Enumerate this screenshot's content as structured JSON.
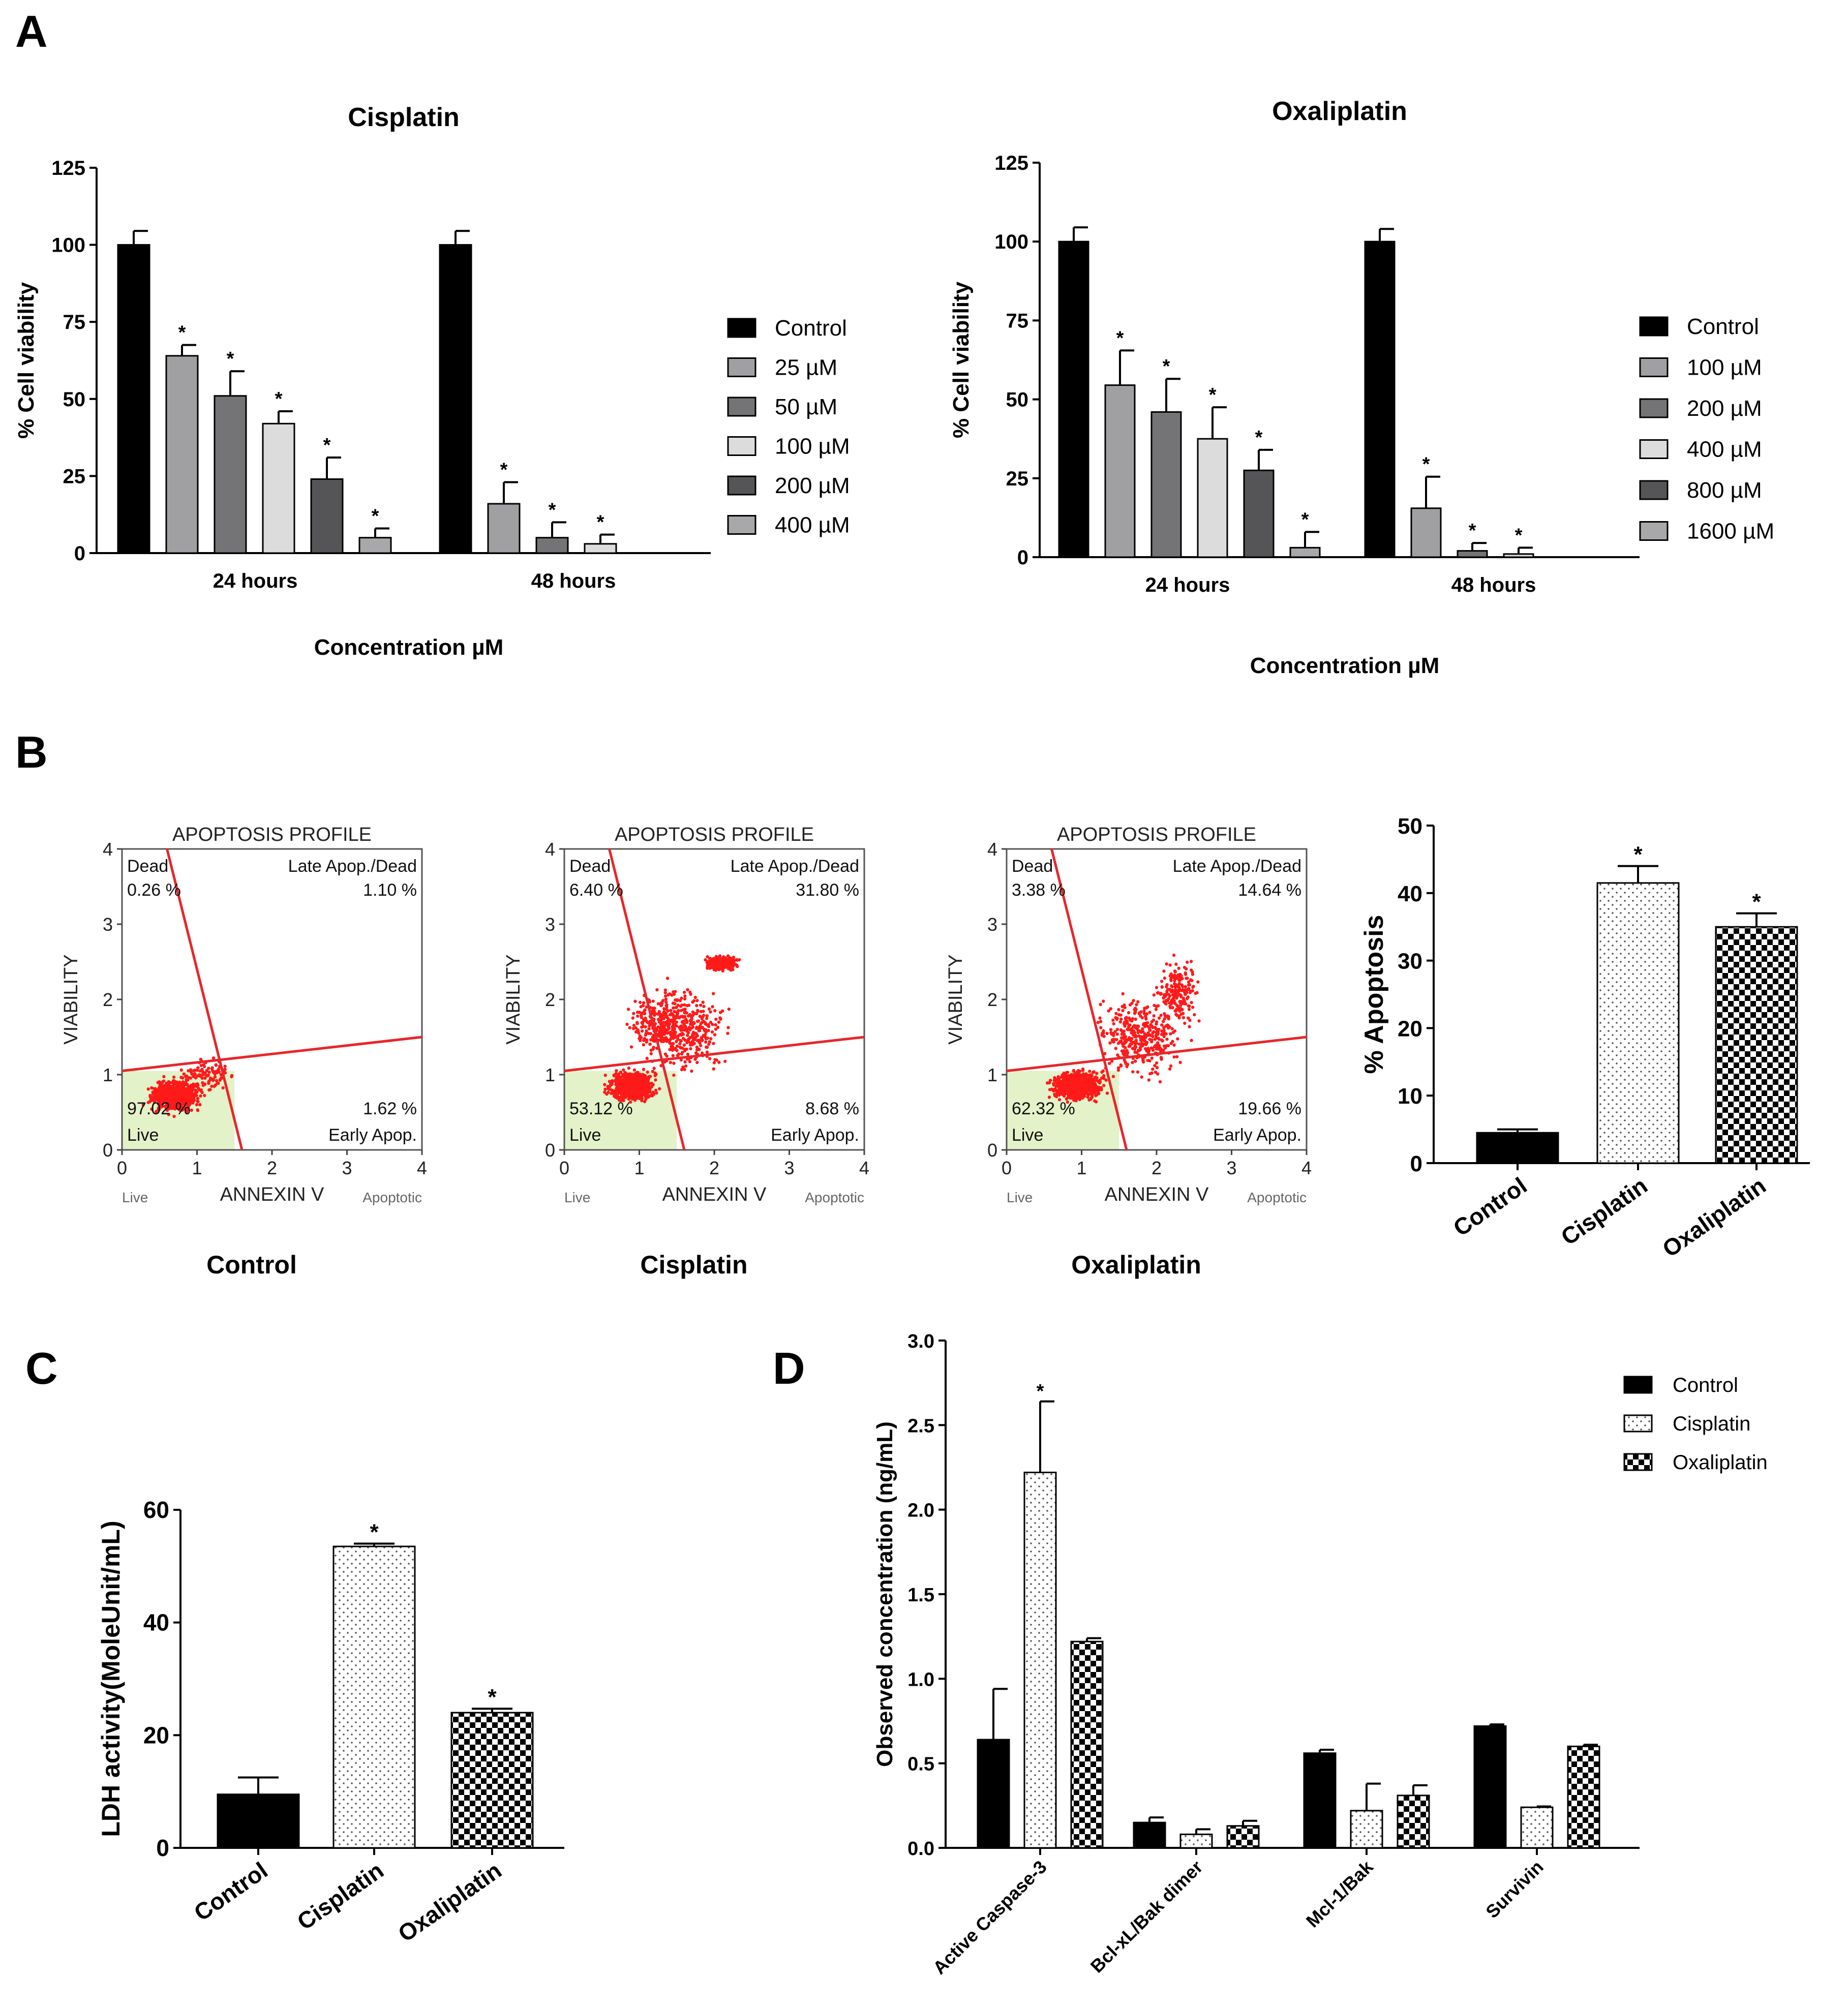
{
  "panel_labels": {
    "a": "A",
    "b": "B",
    "c": "C",
    "d": "D"
  },
  "chart_data": [
    {
      "id": "cis",
      "type": "bar",
      "title": "Cisplatin",
      "xlabel": "Concentration µM",
      "ylabel": "% Cell viability",
      "ylim": [
        0,
        125
      ],
      "yticks": [
        "0",
        "25",
        "50",
        "75",
        "100",
        "125"
      ],
      "categories": [
        "24 hours",
        "48 hours"
      ],
      "series": [
        {
          "name": "Control",
          "values": [
            100,
            100
          ],
          "errors": [
            4.5,
            4.5
          ],
          "sig": [
            false,
            false
          ]
        },
        {
          "name": "25 µM",
          "values": [
            64,
            16
          ],
          "errors": [
            3.5,
            7
          ],
          "sig": [
            true,
            true
          ]
        },
        {
          "name": "50 µM",
          "values": [
            51,
            5
          ],
          "errors": [
            8,
            5
          ],
          "sig": [
            true,
            true
          ]
        },
        {
          "name": "100 µM",
          "values": [
            42,
            3
          ],
          "errors": [
            4,
            3
          ],
          "sig": [
            true,
            true
          ]
        },
        {
          "name": "200 µM",
          "values": [
            24,
            null
          ],
          "errors": [
            7,
            null
          ],
          "sig": [
            true,
            false
          ]
        },
        {
          "name": "400 µM",
          "values": [
            5,
            null
          ],
          "errors": [
            3,
            null
          ],
          "sig": [
            true,
            false
          ]
        }
      ]
    },
    {
      "id": "oxa",
      "type": "bar",
      "title": "Oxaliplatin",
      "xlabel": "Concentration µM",
      "ylabel": "% Cell viability",
      "ylim": [
        0,
        125
      ],
      "yticks": [
        "0",
        "25",
        "50",
        "75",
        "100",
        "125"
      ],
      "categories": [
        "24 hours",
        "48 hours"
      ],
      "series": [
        {
          "name": "Control",
          "values": [
            100,
            100
          ],
          "errors": [
            4.5,
            4
          ],
          "sig": [
            false,
            false
          ]
        },
        {
          "name": "100 µM",
          "values": [
            54.5,
            15.5
          ],
          "errors": [
            11,
            10
          ],
          "sig": [
            true,
            true
          ]
        },
        {
          "name": "200 µM",
          "values": [
            46,
            2
          ],
          "errors": [
            10.5,
            2.5
          ],
          "sig": [
            true,
            true
          ]
        },
        {
          "name": "400 µM",
          "values": [
            37.5,
            1
          ],
          "errors": [
            10,
            2
          ],
          "sig": [
            true,
            true
          ]
        },
        {
          "name": "800 µM",
          "values": [
            27.5,
            null
          ],
          "errors": [
            6.5,
            null
          ],
          "sig": [
            true,
            false
          ]
        },
        {
          "name": "1600 µM",
          "values": [
            3,
            null
          ],
          "errors": [
            5,
            null
          ],
          "sig": [
            true,
            false
          ]
        }
      ]
    },
    {
      "id": "flow",
      "type": "scatter",
      "subtype": "annexin-v-flow-cytometry",
      "panel_title": "APOPTOSIS PROFILE",
      "xlabel": "ANNEXIN V",
      "ylabel": "VIABILITY",
      "xlim": [
        0,
        4
      ],
      "ylim": [
        0,
        4
      ],
      "ticks": [
        "0",
        "1",
        "2",
        "3",
        "4"
      ],
      "x_left_caption": "Live",
      "x_right_caption": "Apoptotic",
      "quadrant_names": {
        "dead": "Dead",
        "late": "Late Apop./Dead",
        "live": "Live",
        "early": "Early Apop."
      },
      "plots": [
        {
          "name": "Control",
          "dead": "0.26 %",
          "late": "1.10 %",
          "live": "97.02 %",
          "early": "1.62 %"
        },
        {
          "name": "Cisplatin",
          "dead": "6.40 %",
          "late": "31.80 %",
          "live": "53.12 %",
          "early": "8.68 %"
        },
        {
          "name": "Oxaliplatin",
          "dead": "3.38 %",
          "late": "14.64 %",
          "live": "62.32 %",
          "early": "19.66 %"
        }
      ]
    },
    {
      "id": "apop",
      "type": "bar",
      "ylabel": "% Apoptosis",
      "ylim": [
        0,
        50
      ],
      "yticks": [
        "0",
        "10",
        "20",
        "30",
        "40",
        "50"
      ],
      "categories": [
        "Control",
        "Cisplatin",
        "Oxaliplatin"
      ],
      "values": [
        4.5,
        41.5,
        35
      ],
      "errors": [
        0.5,
        2.5,
        2
      ],
      "sig": [
        false,
        true,
        true
      ]
    },
    {
      "id": "ldh",
      "type": "bar",
      "ylabel": "LDH activity(MoleUnit/mL)",
      "ylim": [
        0,
        60
      ],
      "yticks": [
        "0",
        "20",
        "40",
        "60"
      ],
      "categories": [
        "Control",
        "Cisplatin",
        "Oxaliplatin"
      ],
      "values": [
        9.5,
        53.5,
        24
      ],
      "errors": [
        3,
        0.5,
        0.7
      ],
      "sig": [
        false,
        true,
        true
      ]
    },
    {
      "id": "proteins",
      "type": "bar",
      "ylabel": "Observed concentration (ng/mL)",
      "ylim": [
        0,
        3
      ],
      "yticks": [
        "0.0",
        "0.5",
        "1.0",
        "1.5",
        "2.0",
        "2.5",
        "3.0"
      ],
      "categories": [
        "Active Caspase-3",
        "Bcl-xL/Bak dimer",
        "Mcl-1/Bak",
        "Survivin"
      ],
      "series": [
        {
          "name": "Control",
          "values": [
            0.64,
            0.15,
            0.56,
            0.72
          ],
          "errors": [
            0.3,
            0.03,
            0.02,
            0.01
          ],
          "sig": [
            false,
            false,
            false,
            false
          ]
        },
        {
          "name": "Cisplatin",
          "values": [
            2.22,
            0.08,
            0.22,
            0.24
          ],
          "errors": [
            0.42,
            0.03,
            0.16,
            0.005
          ],
          "sig": [
            true,
            false,
            false,
            false
          ]
        },
        {
          "name": "Oxaliplatin",
          "values": [
            1.22,
            0.13,
            0.31,
            0.6
          ],
          "errors": [
            0.02,
            0.03,
            0.06,
            0.01
          ],
          "sig": [
            false,
            false,
            false,
            false
          ]
        }
      ]
    }
  ]
}
